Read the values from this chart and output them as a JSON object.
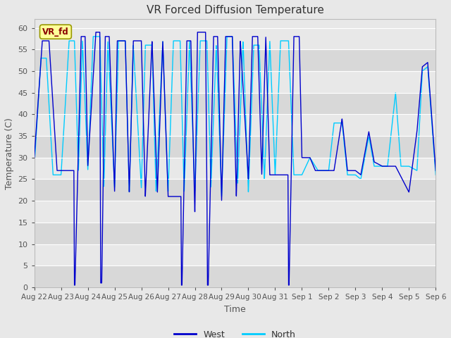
{
  "title": "VR Forced Diffusion Temperature",
  "xlabel": "Time",
  "ylabel": "Temperature (C)",
  "ylim": [
    0,
    62
  ],
  "xlim": [
    0,
    15
  ],
  "label_text": "VR_fd",
  "west_color": "#0000CC",
  "north_color": "#00CCFF",
  "bg_color": "#E8E8E8",
  "plot_bg_light": "#E8E8E8",
  "plot_bg_dark": "#D8D8D8",
  "tick_labels": [
    "Aug 22",
    "Aug 23",
    "Aug 24",
    "Aug 25",
    "Aug 26",
    "Aug 27",
    "Aug 28",
    "Aug 29",
    "Aug 30",
    "Aug 31",
    "Sep 1",
    "Sep 2",
    "Sep 3",
    "Sep 4",
    "Sep 5",
    "Sep 6"
  ],
  "yticks": [
    0,
    5,
    10,
    15,
    20,
    25,
    30,
    35,
    40,
    45,
    50,
    55,
    60
  ],
  "figsize": [
    6.4,
    4.8
  ],
  "dpi": 100
}
